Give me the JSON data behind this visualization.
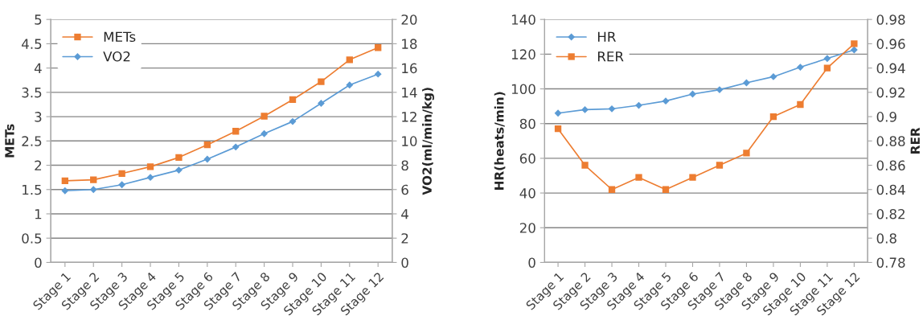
{
  "chart_data": [
    {
      "type": "line",
      "ylabel": "METs",
      "y2label": "VO2(ml/min/kg)",
      "categories": [
        "Stage 1",
        "Stage 2",
        "Stage 3",
        "Stage 4",
        "Stage 5",
        "Stage 6",
        "Stage 7",
        "Stage 8",
        "Stage 9",
        "Stage 10",
        "Stage 11",
        "Stage 12"
      ],
      "series": [
        {
          "name": "METs",
          "color": "#ed7d31",
          "marker": "square",
          "values": [
            1.68,
            1.7,
            1.83,
            1.97,
            2.16,
            2.42,
            2.7,
            3.01,
            3.35,
            3.72,
            4.17,
            4.42
          ]
        },
        {
          "name": "VO2",
          "color": "#5b9bd5",
          "marker": "diamond",
          "axis": "y2",
          "values": [
            5.9,
            6.0,
            6.4,
            7.0,
            7.6,
            8.5,
            9.5,
            10.6,
            11.6,
            13.1,
            14.6,
            15.5
          ]
        }
      ],
      "ylim": [
        0,
        5
      ],
      "yticks": [
        0,
        0.5,
        1,
        1.5,
        2,
        2.5,
        3,
        3.5,
        4,
        4.5,
        5
      ],
      "y2lim": [
        0,
        20
      ],
      "y2ticks": [
        0,
        2,
        4,
        6,
        8,
        10,
        12,
        14,
        16,
        18,
        20
      ],
      "grid": "y",
      "legend": "top left"
    },
    {
      "type": "line",
      "ylabel": "HR(heats/min)",
      "y2label": "RER",
      "categories": [
        "Stage 1",
        "Stage 2",
        "Stage 3",
        "Stage 4",
        "Stage 5",
        "Stage 6",
        "Stage 7",
        "Stage 8",
        "Stage 9",
        "Stage 10",
        "Stage 11",
        "Stage 12"
      ],
      "series": [
        {
          "name": "HR",
          "color": "#5b9bd5",
          "marker": "diamond",
          "values": [
            86,
            88,
            88.5,
            90.5,
            93,
            97,
            99.5,
            103.5,
            107,
            112.5,
            117.5,
            122.5
          ]
        },
        {
          "name": "RER",
          "color": "#ed7d31",
          "marker": "square",
          "axis": "y2",
          "values": [
            0.89,
            0.86,
            0.84,
            0.85,
            0.84,
            0.85,
            0.86,
            0.87,
            0.9,
            0.91,
            0.94,
            0.96
          ]
        }
      ],
      "ylim": [
        0,
        140
      ],
      "yticks": [
        0,
        20,
        40,
        60,
        80,
        100,
        120,
        140
      ],
      "y2lim": [
        0.78,
        0.98
      ],
      "y2ticks": [
        0.78,
        0.8,
        0.82,
        0.84,
        0.86,
        0.88,
        0.9,
        0.92,
        0.94,
        0.96,
        0.98
      ],
      "grid": "y",
      "legend": "top left"
    }
  ]
}
